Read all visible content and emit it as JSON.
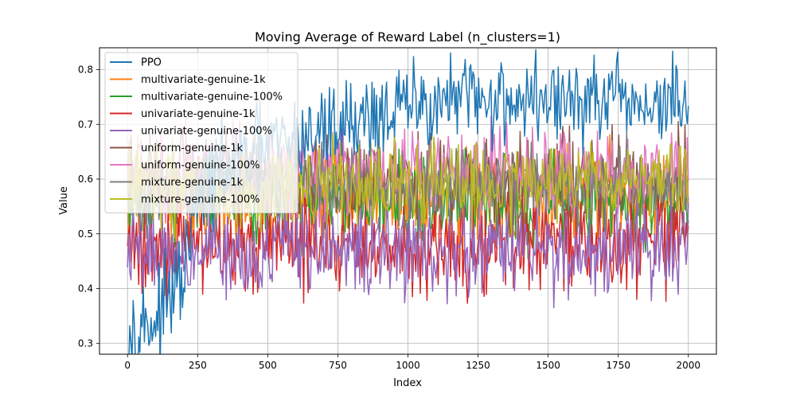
{
  "chart_data": {
    "type": "line",
    "title": "Moving Average of Reward Label (n_clusters=1)",
    "xlabel": "Index",
    "ylabel": "Value",
    "xlim": [
      -100,
      2100
    ],
    "ylim": [
      0.28,
      0.84
    ],
    "xticks": [
      0,
      250,
      500,
      750,
      1000,
      1250,
      1500,
      1750,
      2000
    ],
    "yticks": [
      0.3,
      0.4,
      0.5,
      0.6,
      0.7,
      0.8
    ],
    "xtick_labels": [
      "0",
      "250",
      "500",
      "750",
      "1000",
      "1250",
      "1500",
      "1750",
      "2000"
    ],
    "ytick_labels": [
      "0.3",
      "0.4",
      "0.5",
      "0.6",
      "0.7",
      "0.8"
    ],
    "grid": true,
    "legend_position": "top-left",
    "series": [
      {
        "name": "PPO",
        "color": "#1f77b4",
        "kx": [
          0,
          100,
          200,
          250,
          300,
          400,
          500,
          600,
          700,
          800,
          900,
          1000,
          1100,
          1200,
          1300,
          1400,
          1500,
          1600,
          1700,
          1800,
          1900,
          2000
        ],
        "ky": [
          0.33,
          0.34,
          0.42,
          0.56,
          0.6,
          0.63,
          0.66,
          0.67,
          0.69,
          0.71,
          0.72,
          0.73,
          0.74,
          0.745,
          0.745,
          0.745,
          0.745,
          0.74,
          0.74,
          0.735,
          0.735,
          0.74
        ],
        "amp": 0.04
      },
      {
        "name": "multivariate-genuine-1k",
        "color": "#ff7f0e",
        "kx": [
          0,
          2000
        ],
        "ky": [
          0.57,
          0.57
        ],
        "amp": 0.045
      },
      {
        "name": "multivariate-genuine-100%",
        "color": "#2ca02c",
        "kx": [
          0,
          2000
        ],
        "ky": [
          0.56,
          0.56
        ],
        "amp": 0.04
      },
      {
        "name": "univariate-genuine-1k",
        "color": "#d62728",
        "kx": [
          0,
          2000
        ],
        "ky": [
          0.48,
          0.48
        ],
        "amp": 0.045
      },
      {
        "name": "univariate-genuine-100%",
        "color": "#9467bd",
        "kx": [
          0,
          2000
        ],
        "ky": [
          0.47,
          0.47
        ],
        "amp": 0.04
      },
      {
        "name": "uniform-genuine-1k",
        "color": "#8c564b",
        "kx": [
          0,
          2000
        ],
        "ky": [
          0.6,
          0.6
        ],
        "amp": 0.04
      },
      {
        "name": "uniform-genuine-100%",
        "color": "#e377c2",
        "kx": [
          0,
          2000
        ],
        "ky": [
          0.61,
          0.61
        ],
        "amp": 0.04
      },
      {
        "name": "mixture-genuine-1k",
        "color": "#7f7f7f",
        "kx": [
          0,
          2000
        ],
        "ky": [
          0.59,
          0.59
        ],
        "amp": 0.035
      },
      {
        "name": "mixture-genuine-100%",
        "color": "#bcbd22",
        "kx": [
          0,
          2000
        ],
        "ky": [
          0.59,
          0.6
        ],
        "amp": 0.04
      }
    ]
  }
}
